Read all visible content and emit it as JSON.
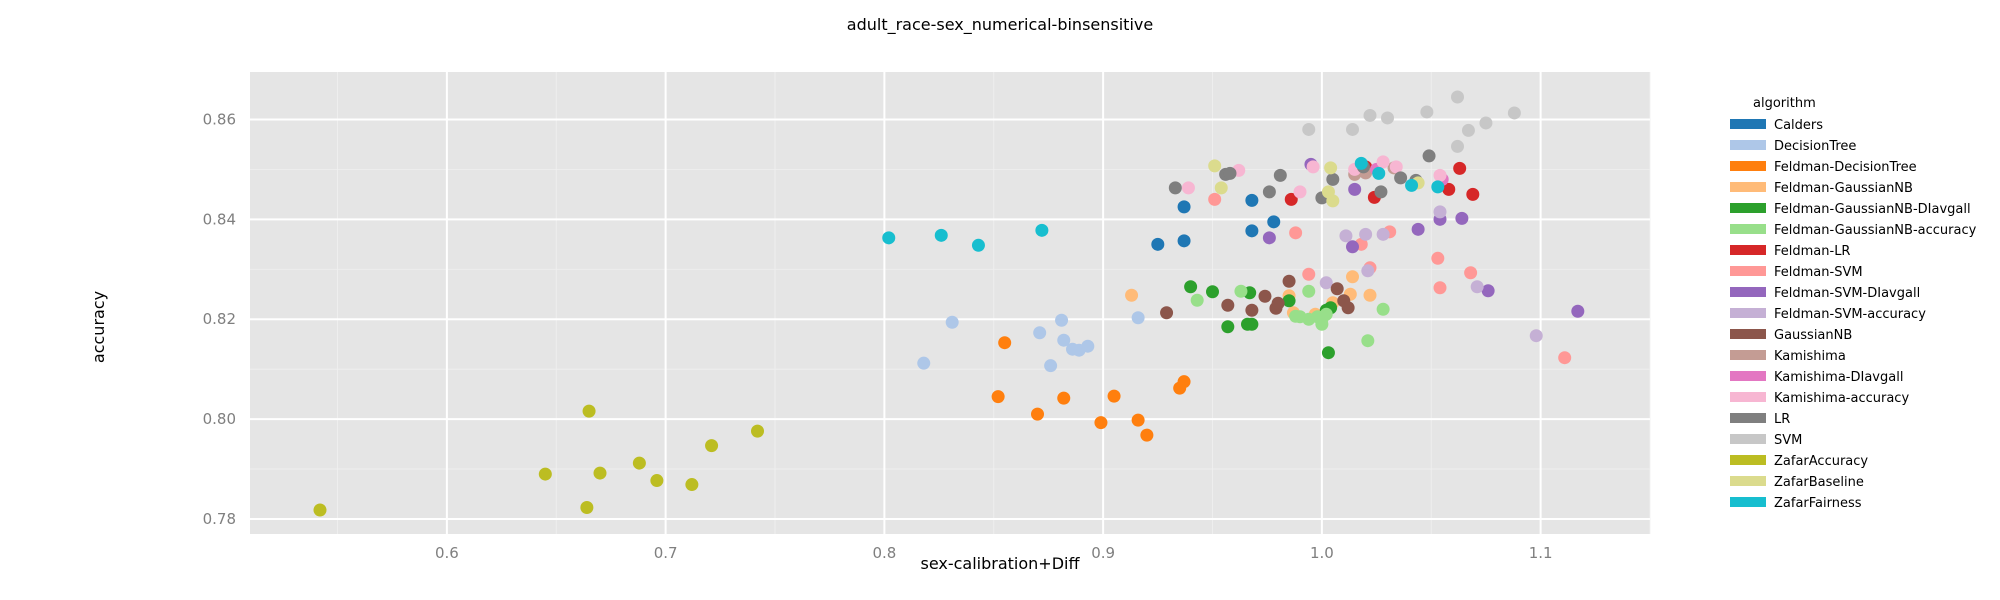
{
  "chart_data": {
    "type": "scatter",
    "title": "adult_race-sex_numerical-binsensitive",
    "xlabel": "sex-calibration+Diff",
    "ylabel": "accuracy",
    "xlim": [
      0.51,
      1.15
    ],
    "ylim": [
      0.777,
      0.8695
    ],
    "x_ticks": [
      0.6,
      0.7,
      0.8,
      0.9,
      1.0,
      1.1
    ],
    "x_tick_labels": [
      "0.6",
      "0.7",
      "0.8",
      "0.9",
      "1.0",
      "1.1"
    ],
    "y_ticks": [
      0.78,
      0.8,
      0.82,
      0.84,
      0.86
    ],
    "y_tick_labels": [
      "0.78",
      "0.80",
      "0.82",
      "0.84",
      "0.86"
    ],
    "grid": true,
    "legend_title": "algorithm",
    "legend_position": "right",
    "series": [
      {
        "name": "Calders",
        "color": "#1f77b4",
        "points": [
          [
            0.925,
            0.835
          ],
          [
            0.937,
            0.8357
          ],
          [
            0.937,
            0.8425
          ],
          [
            0.968,
            0.8438
          ],
          [
            0.968,
            0.8377
          ],
          [
            0.978,
            0.8395
          ]
        ]
      },
      {
        "name": "DecisionTree",
        "color": "#aec7e8",
        "points": [
          [
            0.818,
            0.8112
          ],
          [
            0.831,
            0.8194
          ],
          [
            0.871,
            0.8173
          ],
          [
            0.876,
            0.8107
          ],
          [
            0.881,
            0.8198
          ],
          [
            0.882,
            0.8158
          ],
          [
            0.886,
            0.814
          ],
          [
            0.889,
            0.8138
          ],
          [
            0.893,
            0.8146
          ],
          [
            0.916,
            0.8203
          ]
        ]
      },
      {
        "name": "Feldman-DecisionTree",
        "color": "#ff7f0e",
        "points": [
          [
            0.855,
            0.8153
          ],
          [
            0.852,
            0.8045
          ],
          [
            0.87,
            0.801
          ],
          [
            0.882,
            0.8042
          ],
          [
            0.899,
            0.7993
          ],
          [
            0.905,
            0.8046
          ],
          [
            0.916,
            0.7998
          ],
          [
            0.92,
            0.7968
          ],
          [
            0.935,
            0.8062
          ],
          [
            0.937,
            0.8075
          ]
        ]
      },
      {
        "name": "Feldman-GaussianNB",
        "color": "#ffbb78",
        "points": [
          [
            0.913,
            0.8248
          ],
          [
            0.985,
            0.8247
          ],
          [
            0.987,
            0.8213
          ],
          [
            0.997,
            0.821
          ],
          [
            1.005,
            0.8233
          ],
          [
            1.013,
            0.825
          ],
          [
            1.014,
            0.8285
          ],
          [
            1.022,
            0.8248
          ]
        ]
      },
      {
        "name": "Feldman-GaussianNB-DIavgall",
        "color": "#2ca02c",
        "points": [
          [
            0.94,
            0.8265
          ],
          [
            0.95,
            0.8255
          ],
          [
            0.957,
            0.8185
          ],
          [
            0.966,
            0.819
          ],
          [
            0.968,
            0.819
          ],
          [
            0.967,
            0.8253
          ],
          [
            0.985,
            0.8237
          ],
          [
            1.002,
            0.8218
          ],
          [
            1.004,
            0.8223
          ],
          [
            1.003,
            0.8133
          ]
        ]
      },
      {
        "name": "Feldman-GaussianNB-accuracy",
        "color": "#98df8a",
        "points": [
          [
            0.943,
            0.8238
          ],
          [
            0.963,
            0.8256
          ],
          [
            0.988,
            0.8206
          ],
          [
            0.99,
            0.8205
          ],
          [
            0.994,
            0.8256
          ],
          [
            0.994,
            0.82
          ],
          [
            0.998,
            0.8205
          ],
          [
            1.0,
            0.819
          ],
          [
            1.0,
            0.82
          ],
          [
            1.002,
            0.821
          ],
          [
            1.021,
            0.8157
          ],
          [
            1.028,
            0.822
          ]
        ]
      },
      {
        "name": "Feldman-LR",
        "color": "#d62728",
        "points": [
          [
            0.986,
            0.844
          ],
          [
            1.02,
            0.8505
          ],
          [
            1.024,
            0.8444
          ],
          [
            1.058,
            0.846
          ],
          [
            1.063,
            0.8502
          ],
          [
            1.069,
            0.845
          ]
        ]
      },
      {
        "name": "Feldman-SVM",
        "color": "#ff9896",
        "points": [
          [
            0.951,
            0.844
          ],
          [
            0.988,
            0.8373
          ],
          [
            0.994,
            0.829
          ],
          [
            1.018,
            0.835
          ],
          [
            1.022,
            0.8303
          ],
          [
            1.031,
            0.8375
          ],
          [
            1.053,
            0.8322
          ],
          [
            1.054,
            0.8263
          ],
          [
            1.068,
            0.8293
          ],
          [
            1.111,
            0.8123
          ]
        ]
      },
      {
        "name": "Feldman-SVM-DIavgall",
        "color": "#9467bd",
        "points": [
          [
            0.976,
            0.8363
          ],
          [
            0.995,
            0.851
          ],
          [
            1.014,
            0.8345
          ],
          [
            1.015,
            0.846
          ],
          [
            1.044,
            0.838
          ],
          [
            1.054,
            0.84
          ],
          [
            1.064,
            0.8402
          ],
          [
            1.076,
            0.8257
          ],
          [
            1.117,
            0.8216
          ]
        ]
      },
      {
        "name": "Feldman-SVM-accuracy",
        "color": "#c5b0d5",
        "points": [
          [
            1.002,
            0.8273
          ],
          [
            1.011,
            0.8367
          ],
          [
            1.02,
            0.837
          ],
          [
            1.021,
            0.8297
          ],
          [
            1.028,
            0.837
          ],
          [
            1.054,
            0.8415
          ],
          [
            1.071,
            0.8265
          ],
          [
            1.098,
            0.8167
          ]
        ]
      },
      {
        "name": "GaussianNB",
        "color": "#8c564b",
        "points": [
          [
            0.929,
            0.8213
          ],
          [
            0.957,
            0.8228
          ],
          [
            0.968,
            0.8218
          ],
          [
            0.974,
            0.8246
          ],
          [
            0.979,
            0.8222
          ],
          [
            0.98,
            0.8232
          ],
          [
            0.985,
            0.8276
          ],
          [
            1.007,
            0.8261
          ],
          [
            1.01,
            0.8237
          ],
          [
            1.012,
            0.8223
          ]
        ]
      },
      {
        "name": "Kamishima",
        "color": "#c49c94",
        "points": [
          [
            1.015,
            0.849
          ],
          [
            1.02,
            0.8493
          ],
          [
            1.033,
            0.8503
          ],
          [
            1.043,
            0.8476
          ]
        ]
      },
      {
        "name": "Kamishima-DIavgall",
        "color": "#e377c2",
        "points": [
          [
            1.025,
            0.85
          ],
          [
            1.055,
            0.848
          ]
        ]
      },
      {
        "name": "Kamishima-accuracy",
        "color": "#f7b6d2",
        "points": [
          [
            0.939,
            0.8463
          ],
          [
            0.962,
            0.8498
          ],
          [
            0.99,
            0.8455
          ],
          [
            0.996,
            0.8505
          ],
          [
            1.015,
            0.85
          ],
          [
            1.028,
            0.8515
          ],
          [
            1.034,
            0.8505
          ],
          [
            1.054,
            0.8488
          ]
        ]
      },
      {
        "name": "LR",
        "color": "#7f7f7f",
        "points": [
          [
            0.933,
            0.8463
          ],
          [
            0.956,
            0.849
          ],
          [
            0.958,
            0.8492
          ],
          [
            0.976,
            0.8455
          ],
          [
            0.981,
            0.8488
          ],
          [
            1.0,
            0.8443
          ],
          [
            1.005,
            0.848
          ],
          [
            1.019,
            0.8505
          ],
          [
            1.027,
            0.8455
          ],
          [
            1.036,
            0.8483
          ],
          [
            1.043,
            0.8478
          ],
          [
            1.049,
            0.8527
          ]
        ]
      },
      {
        "name": "SVM",
        "color": "#c7c7c7",
        "points": [
          [
            0.994,
            0.858
          ],
          [
            1.014,
            0.858
          ],
          [
            1.022,
            0.8608
          ],
          [
            1.03,
            0.8603
          ],
          [
            1.048,
            0.8615
          ],
          [
            1.062,
            0.8645
          ],
          [
            1.062,
            0.8546
          ],
          [
            1.067,
            0.8578
          ],
          [
            1.075,
            0.8593
          ],
          [
            1.088,
            0.8613
          ]
        ]
      },
      {
        "name": "ZafarAccuracy",
        "color": "#bcbd22",
        "points": [
          [
            0.542,
            0.7818
          ],
          [
            0.645,
            0.789
          ],
          [
            0.665,
            0.8016
          ],
          [
            0.664,
            0.7823
          ],
          [
            0.67,
            0.7892
          ],
          [
            0.688,
            0.7912
          ],
          [
            0.696,
            0.7877
          ],
          [
            0.712,
            0.7869
          ],
          [
            0.721,
            0.7947
          ],
          [
            0.742,
            0.7976
          ]
        ]
      },
      {
        "name": "ZafarBaseline",
        "color": "#dbdb8d",
        "points": [
          [
            0.951,
            0.8507
          ],
          [
            0.954,
            0.8463
          ],
          [
            1.003,
            0.8455
          ],
          [
            1.004,
            0.8503
          ],
          [
            1.005,
            0.8437
          ],
          [
            1.044,
            0.8473
          ]
        ]
      },
      {
        "name": "ZafarFairness",
        "color": "#17becf",
        "points": [
          [
            0.802,
            0.8363
          ],
          [
            0.826,
            0.8368
          ],
          [
            0.843,
            0.8348
          ],
          [
            0.872,
            0.8378
          ],
          [
            1.018,
            0.8512
          ],
          [
            1.026,
            0.8492
          ],
          [
            1.041,
            0.8468
          ],
          [
            1.053,
            0.8465
          ]
        ]
      }
    ]
  }
}
